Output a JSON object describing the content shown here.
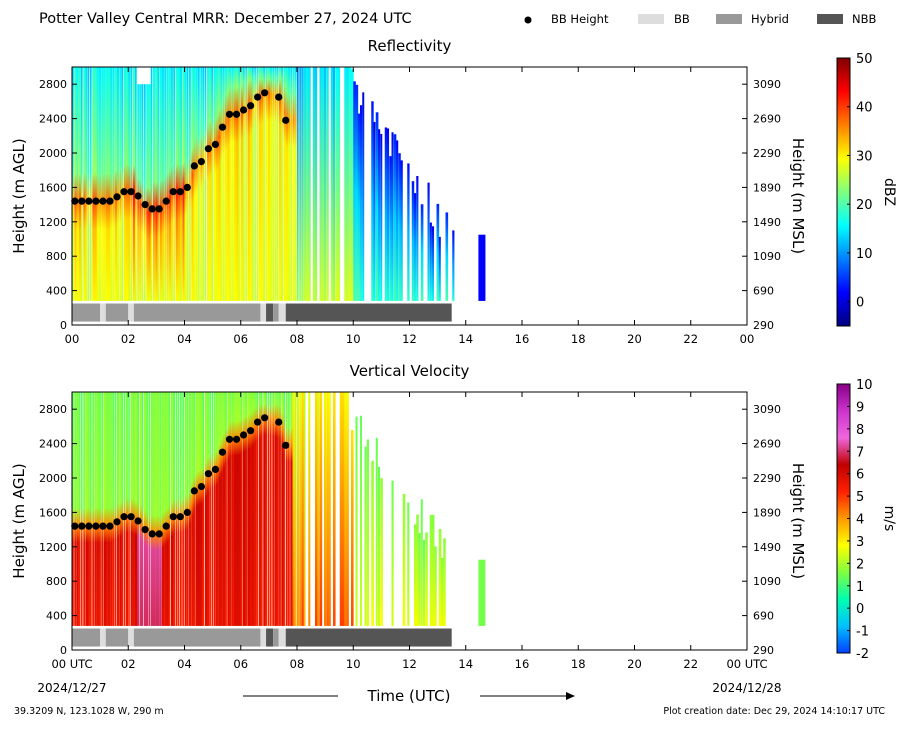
{
  "header": {
    "title": "Potter Valley Central MRR:  December 27, 2024 UTC",
    "legend": [
      {
        "label": "BB Height",
        "kind": "marker",
        "color": "#000000"
      },
      {
        "label": "BB",
        "kind": "swatch",
        "color": "#dddddd"
      },
      {
        "label": "Hybrid",
        "kind": "swatch",
        "color": "#999999"
      },
      {
        "label": "NBB",
        "kind": "swatch",
        "color": "#555555"
      }
    ]
  },
  "footer": {
    "location": "39.3209 N, 123.1028 W, 290 m",
    "creation": "Plot creation date: Dec 29, 2024 14:10:17 UTC",
    "xlabel": "Time (UTC)",
    "start_date": "2024/12/27",
    "end_date": "2024/12/28"
  },
  "chart_data": [
    {
      "type": "heatmap",
      "title": "Reflectivity",
      "ylabel": "Height (m AGL)",
      "ylabel_right": "Height (m MSL)",
      "colorbar_label": "dBZ",
      "colorbar_ticks": [
        "50",
        "40",
        "30",
        "20",
        "10",
        "0"
      ],
      "colorbar_range": [
        -5,
        50
      ],
      "colorbar_colors": [
        "#00007f",
        "#0000ff",
        "#007fff",
        "#00ffff",
        "#7fff7f",
        "#ffff00",
        "#ff7f00",
        "#ff0000",
        "#7f0000"
      ],
      "x_ticks": [
        "00",
        "02",
        "04",
        "06",
        "08",
        "10",
        "12",
        "14",
        "16",
        "18",
        "20",
        "22",
        "00"
      ],
      "xlim": [
        0,
        24
      ],
      "ylim": [
        0,
        3000
      ],
      "y_ticks": [
        "0",
        "400",
        "800",
        "1200",
        "1600",
        "2000",
        "2400",
        "2800"
      ],
      "y_ticks_right": [
        "290",
        "690",
        "1090",
        "1490",
        "1890",
        "2290",
        "2690",
        "3090"
      ],
      "data_extent_hours": [
        0,
        13.6
      ],
      "isolated_echo_hours": [
        14.45,
        14.7
      ],
      "bb_height": {
        "x": [
          0.1,
          0.35,
          0.6,
          0.85,
          1.1,
          1.35,
          1.6,
          1.85,
          2.1,
          2.35,
          2.6,
          2.85,
          3.1,
          3.35,
          3.6,
          3.85,
          4.1,
          4.35,
          4.6,
          4.85,
          5.1,
          5.35,
          5.6,
          5.85,
          6.1,
          6.35,
          6.6,
          6.85,
          7.35,
          7.6
        ],
        "y": [
          1440,
          1440,
          1440,
          1440,
          1440,
          1440,
          1490,
          1550,
          1550,
          1500,
          1400,
          1350,
          1350,
          1440,
          1550,
          1550,
          1600,
          1850,
          1900,
          2050,
          2100,
          2300,
          2450,
          2450,
          2500,
          2550,
          2650,
          2700,
          2650,
          2380
        ]
      },
      "bb_type_segments": [
        {
          "start": 0.0,
          "end": 1.0,
          "type": "Hybrid"
        },
        {
          "start": 1.0,
          "end": 1.2,
          "type": "BB"
        },
        {
          "start": 1.2,
          "end": 2.0,
          "type": "Hybrid"
        },
        {
          "start": 2.0,
          "end": 2.2,
          "type": "BB"
        },
        {
          "start": 2.2,
          "end": 6.7,
          "type": "Hybrid"
        },
        {
          "start": 6.7,
          "end": 6.9,
          "type": "BB"
        },
        {
          "start": 6.9,
          "end": 7.15,
          "type": "NBB"
        },
        {
          "start": 7.15,
          "end": 7.35,
          "type": "Hybrid"
        },
        {
          "start": 7.35,
          "end": 7.6,
          "type": "BB"
        },
        {
          "start": 7.6,
          "end": 13.5,
          "type": "NBB"
        }
      ]
    },
    {
      "type": "heatmap",
      "title": "Vertical Velocity",
      "ylabel": "Height (m AGL)",
      "ylabel_right": "Height (m MSL)",
      "colorbar_label": "m/s",
      "colorbar_ticks": [
        "10",
        "9",
        "8",
        "7",
        "6",
        "5",
        "4",
        "3",
        "2",
        "1",
        "0",
        "-1",
        "-2"
      ],
      "colorbar_range": [
        -2,
        10
      ],
      "colorbar_colors": [
        "#0040ff",
        "#00c0ff",
        "#00ffb0",
        "#80ff40",
        "#ffff00",
        "#ff9900",
        "#ff2000",
        "#c00000",
        "#ee66dd",
        "#cc33cc",
        "#880088"
      ],
      "x_ticks": [
        "00 UTC",
        "02",
        "04",
        "06",
        "08",
        "10",
        "12",
        "14",
        "16",
        "18",
        "20",
        "22",
        "00 UTC"
      ],
      "xlim": [
        0,
        24
      ],
      "ylim": [
        0,
        3000
      ],
      "y_ticks": [
        "0",
        "400",
        "800",
        "1200",
        "1600",
        "2000",
        "2400",
        "2800"
      ],
      "y_ticks_right": [
        "290",
        "690",
        "1090",
        "1490",
        "1890",
        "2290",
        "2690",
        "3090"
      ],
      "data_extent_hours": [
        0,
        13.6
      ],
      "isolated_echo_hours": [
        14.45,
        14.7
      ],
      "bb_height": {
        "x": [
          0.1,
          0.35,
          0.6,
          0.85,
          1.1,
          1.35,
          1.6,
          1.85,
          2.1,
          2.35,
          2.6,
          2.85,
          3.1,
          3.35,
          3.6,
          3.85,
          4.1,
          4.35,
          4.6,
          4.85,
          5.1,
          5.35,
          5.6,
          5.85,
          6.1,
          6.35,
          6.6,
          6.85,
          7.35,
          7.6
        ],
        "y": [
          1440,
          1440,
          1440,
          1440,
          1440,
          1440,
          1490,
          1550,
          1550,
          1500,
          1400,
          1350,
          1350,
          1440,
          1550,
          1550,
          1600,
          1850,
          1900,
          2050,
          2100,
          2300,
          2450,
          2450,
          2500,
          2550,
          2650,
          2700,
          2650,
          2380
        ]
      },
      "bb_type_segments": [
        {
          "start": 0.0,
          "end": 1.0,
          "type": "Hybrid"
        },
        {
          "start": 1.0,
          "end": 1.2,
          "type": "BB"
        },
        {
          "start": 1.2,
          "end": 2.0,
          "type": "Hybrid"
        },
        {
          "start": 2.0,
          "end": 2.2,
          "type": "BB"
        },
        {
          "start": 2.2,
          "end": 6.7,
          "type": "Hybrid"
        },
        {
          "start": 6.7,
          "end": 6.9,
          "type": "BB"
        },
        {
          "start": 6.9,
          "end": 7.15,
          "type": "NBB"
        },
        {
          "start": 7.15,
          "end": 7.35,
          "type": "Hybrid"
        },
        {
          "start": 7.35,
          "end": 7.6,
          "type": "BB"
        },
        {
          "start": 7.6,
          "end": 13.5,
          "type": "NBB"
        }
      ]
    }
  ]
}
